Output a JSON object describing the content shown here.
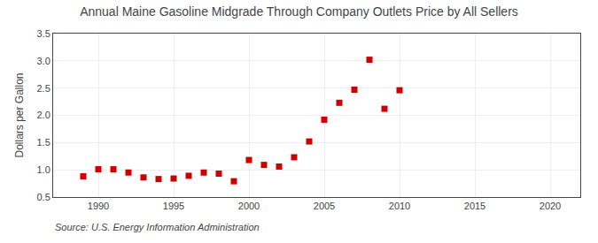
{
  "chart_data": {
    "type": "scatter",
    "title": "Annual Maine Gasoline Midgrade Through Company Outlets Price by All Sellers",
    "ylabel": "Dollars per Gallon",
    "annotations": [
      "Source: U.S. Energy Information Administration"
    ],
    "x": [
      1989,
      1990,
      1991,
      1992,
      1993,
      1994,
      1995,
      1996,
      1997,
      1998,
      1999,
      2000,
      2001,
      2002,
      2003,
      2004,
      2005,
      2006,
      2007,
      2008,
      2009,
      2010
    ],
    "values": [
      0.88,
      1.01,
      1.01,
      0.95,
      0.86,
      0.83,
      0.84,
      0.89,
      0.95,
      0.93,
      0.79,
      1.18,
      1.09,
      1.06,
      1.23,
      1.52,
      1.92,
      2.23,
      2.47,
      3.02,
      2.12,
      2.46
    ],
    "color": "#cc0000",
    "marker": "square",
    "xlim": [
      1987,
      2022
    ],
    "ylim": [
      0.5,
      3.5
    ],
    "xticks": [
      1990,
      1995,
      2000,
      2005,
      2010,
      2015,
      2020
    ],
    "yticks": [
      0.5,
      {
        "value": 1,
        "label": "1.0"
      },
      1.5,
      {
        "value": 2,
        "label": "2.0"
      },
      2.5,
      {
        "value": 3,
        "label": "3.0"
      },
      3.5
    ],
    "grid": true
  }
}
